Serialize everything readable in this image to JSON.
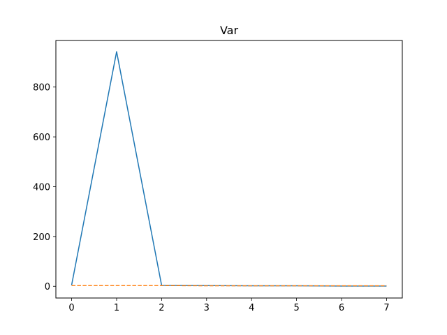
{
  "chart_data": {
    "type": "line",
    "title": "Var",
    "xlabel": "",
    "ylabel": "",
    "x": [
      0,
      1,
      2,
      3,
      4,
      5,
      6,
      7
    ],
    "xlim": [
      -0.35,
      7.35
    ],
    "ylim": [
      -47,
      987
    ],
    "xticks": [
      0,
      1,
      2,
      3,
      4,
      5,
      6,
      7
    ],
    "yticks": [
      0,
      200,
      400,
      600,
      800
    ],
    "grid": false,
    "series": [
      {
        "values": [
          5,
          942,
          4,
          3,
          2,
          2,
          1,
          1
        ],
        "color": "#1f77b4",
        "style": "solid"
      },
      {
        "values": [
          3,
          3,
          3,
          2,
          2,
          2,
          2,
          2
        ],
        "color": "#ff7f0e",
        "style": "dashed"
      }
    ]
  }
}
